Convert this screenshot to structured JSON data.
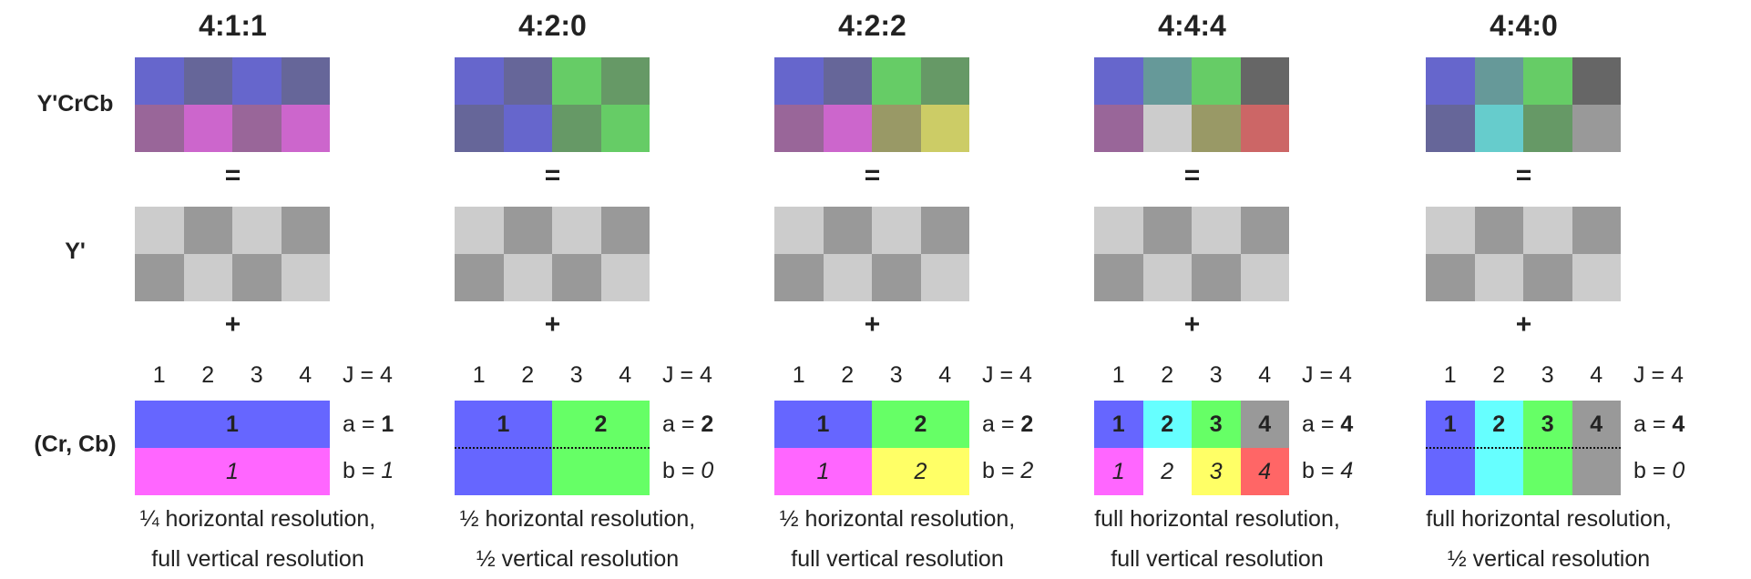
{
  "row_labels": {
    "ycrcb": "Y'CrCb",
    "y": "Y'",
    "chroma": "(Cr, Cb)"
  },
  "operators": {
    "equals": "=",
    "plus": "+"
  },
  "column_numbers": [
    "1",
    "2",
    "3",
    "4"
  ],
  "luma_colors": [
    "#cccccc",
    "#999999",
    "#cccccc",
    "#999999",
    "#999999",
    "#cccccc",
    "#999999",
    "#cccccc"
  ],
  "panels": [
    {
      "title": "4:1:1",
      "ycrcb_colors": [
        "#6666cc",
        "#666699",
        "#6666cc",
        "#666699",
        "#996699",
        "#cc66cc",
        "#996699",
        "#cc66cc"
      ],
      "j_label": "J = 4",
      "a_prefix": "a = ",
      "a_value": "1",
      "b_prefix": "b = ",
      "b_value": "1",
      "chroma_top": [
        {
          "label": "1",
          "color": "#6666ff",
          "span": 4
        }
      ],
      "chroma_bottom": [
        {
          "label": "1",
          "color": "#ff66ff",
          "span": 4
        }
      ],
      "dotted": false,
      "desc_line1": "¼ horizontal resolution,",
      "desc_line2": "full vertical resolution"
    },
    {
      "title": "4:2:0",
      "ycrcb_colors": [
        "#6666cc",
        "#666699",
        "#66cc66",
        "#669966",
        "#666699",
        "#6666cc",
        "#669966",
        "#66cc66"
      ],
      "j_label": "J = 4",
      "a_prefix": "a = ",
      "a_value": "2",
      "b_prefix": "b = ",
      "b_value": "0",
      "chroma_top": [
        {
          "label": "1",
          "color": "#6666ff",
          "span": 2
        },
        {
          "label": "2",
          "color": "#66ff66",
          "span": 2
        }
      ],
      "chroma_bottom": [
        {
          "label": "",
          "color": "#6666ff",
          "span": 2
        },
        {
          "label": "",
          "color": "#66ff66",
          "span": 2
        }
      ],
      "dotted": true,
      "desc_line1": "½ horizontal resolution,",
      "desc_line2": "½ vertical resolution"
    },
    {
      "title": "4:2:2",
      "ycrcb_colors": [
        "#6666cc",
        "#666699",
        "#66cc66",
        "#669966",
        "#996699",
        "#cc66cc",
        "#999966",
        "#cccc66"
      ],
      "j_label": "J = 4",
      "a_prefix": "a = ",
      "a_value": "2",
      "b_prefix": "b = ",
      "b_value": "2",
      "chroma_top": [
        {
          "label": "1",
          "color": "#6666ff",
          "span": 2
        },
        {
          "label": "2",
          "color": "#66ff66",
          "span": 2
        }
      ],
      "chroma_bottom": [
        {
          "label": "1",
          "color": "#ff66ff",
          "span": 2
        },
        {
          "label": "2",
          "color": "#ffff66",
          "span": 2
        }
      ],
      "dotted": false,
      "desc_line1": "½ horizontal resolution,",
      "desc_line2": "full vertical resolution"
    },
    {
      "title": "4:4:4",
      "ycrcb_colors": [
        "#6666cc",
        "#669999",
        "#66cc66",
        "#666666",
        "#996699",
        "#cccccc",
        "#999966",
        "#cc6666"
      ],
      "j_label": "J = 4",
      "a_prefix": "a = ",
      "a_value": "4",
      "b_prefix": "b = ",
      "b_value": "4",
      "chroma_top": [
        {
          "label": "1",
          "color": "#6666ff",
          "span": 1
        },
        {
          "label": "2",
          "color": "#66ffff",
          "span": 1
        },
        {
          "label": "3",
          "color": "#66ff66",
          "span": 1
        },
        {
          "label": "4",
          "color": "#999999",
          "span": 1
        }
      ],
      "chroma_bottom": [
        {
          "label": "1",
          "color": "#ff66ff",
          "span": 1
        },
        {
          "label": "2",
          "color": "#ffffff",
          "span": 1
        },
        {
          "label": "3",
          "color": "#ffff66",
          "span": 1
        },
        {
          "label": "4",
          "color": "#ff6666",
          "span": 1
        }
      ],
      "dotted": false,
      "desc_line1": "full horizontal resolution,",
      "desc_line2": "full vertical resolution"
    },
    {
      "title": "4:4:0",
      "ycrcb_colors": [
        "#6666cc",
        "#669999",
        "#66cc66",
        "#666666",
        "#666699",
        "#66cccc",
        "#669966",
        "#999999"
      ],
      "j_label": "J = 4",
      "a_prefix": "a = ",
      "a_value": "4",
      "b_prefix": "b = ",
      "b_value": "0",
      "chroma_top": [
        {
          "label": "1",
          "color": "#6666ff",
          "span": 1
        },
        {
          "label": "2",
          "color": "#66ffff",
          "span": 1
        },
        {
          "label": "3",
          "color": "#66ff66",
          "span": 1
        },
        {
          "label": "4",
          "color": "#999999",
          "span": 1
        }
      ],
      "chroma_bottom": [
        {
          "label": "",
          "color": "#6666ff",
          "span": 1
        },
        {
          "label": "",
          "color": "#66ffff",
          "span": 1
        },
        {
          "label": "",
          "color": "#66ff66",
          "span": 1
        },
        {
          "label": "",
          "color": "#999999",
          "span": 1
        }
      ],
      "dotted": true,
      "desc_line1": "full horizontal resolution,",
      "desc_line2": "½ vertical resolution"
    }
  ]
}
